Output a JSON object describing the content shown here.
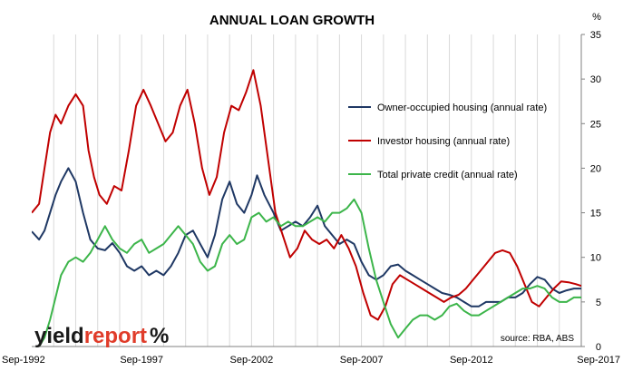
{
  "chart_data": {
    "type": "line",
    "title": "ANNUAL LOAN GROWTH",
    "y_unit": "%",
    "ylim": [
      0,
      35
    ],
    "y_ticks": [
      "0",
      "5",
      "10",
      "15",
      "20",
      "25",
      "30",
      "35"
    ],
    "x_range": [
      "1992-09",
      "2017-09"
    ],
    "x_ticks": [
      {
        "label": "Sep-1992",
        "date": "1992-09"
      },
      {
        "label": "Sep-1997",
        "date": "1997-09"
      },
      {
        "label": "Sep-2002",
        "date": "2002-09"
      },
      {
        "label": "Sep-2007",
        "date": "2007-09"
      },
      {
        "label": "Sep-2012",
        "date": "2012-09"
      },
      {
        "label": "Sep-2017",
        "date": "2017-09"
      }
    ],
    "grid": "vertical lines at year intervals",
    "legend_position": "right, upper middle",
    "series": [
      {
        "name": "Owner-occupied housing (annual rate)",
        "color": "#1f3864",
        "points": [
          [
            "1992-09",
            12.9
          ],
          [
            "1993-01",
            12.0
          ],
          [
            "1993-04",
            13.0
          ],
          [
            "1993-07",
            15.0
          ],
          [
            "1993-10",
            17.0
          ],
          [
            "1994-01",
            18.5
          ],
          [
            "1994-05",
            20.0
          ],
          [
            "1994-09",
            18.5
          ],
          [
            "1995-01",
            15.0
          ],
          [
            "1995-05",
            12.0
          ],
          [
            "1995-09",
            11.0
          ],
          [
            "1996-01",
            10.8
          ],
          [
            "1996-05",
            11.6
          ],
          [
            "1996-09",
            10.5
          ],
          [
            "1997-01",
            9.0
          ],
          [
            "1997-05",
            8.5
          ],
          [
            "1997-09",
            9.0
          ],
          [
            "1998-01",
            8.0
          ],
          [
            "1998-05",
            8.5
          ],
          [
            "1998-09",
            8.0
          ],
          [
            "1999-01",
            9.0
          ],
          [
            "1999-05",
            10.5
          ],
          [
            "1999-09",
            12.5
          ],
          [
            "2000-01",
            13.0
          ],
          [
            "2000-05",
            11.5
          ],
          [
            "2000-09",
            10.0
          ],
          [
            "2001-01",
            12.5
          ],
          [
            "2001-05",
            16.5
          ],
          [
            "2001-09",
            18.5
          ],
          [
            "2002-01",
            16.0
          ],
          [
            "2002-05",
            15.0
          ],
          [
            "2002-09",
            17.0
          ],
          [
            "2002-12",
            19.2
          ],
          [
            "2003-04",
            17.0
          ],
          [
            "2003-09",
            15.0
          ],
          [
            "2004-01",
            13.0
          ],
          [
            "2004-05",
            13.5
          ],
          [
            "2004-09",
            14.0
          ],
          [
            "2005-01",
            13.5
          ],
          [
            "2005-05",
            14.5
          ],
          [
            "2005-09",
            15.8
          ],
          [
            "2006-01",
            13.5
          ],
          [
            "2006-05",
            12.5
          ],
          [
            "2006-09",
            11.5
          ],
          [
            "2007-01",
            12.0
          ],
          [
            "2007-05",
            11.5
          ],
          [
            "2007-09",
            9.5
          ],
          [
            "2008-01",
            8.0
          ],
          [
            "2008-05",
            7.5
          ],
          [
            "2008-09",
            8.0
          ],
          [
            "2009-01",
            9.0
          ],
          [
            "2009-05",
            9.2
          ],
          [
            "2009-09",
            8.5
          ],
          [
            "2010-01",
            8.0
          ],
          [
            "2010-05",
            7.5
          ],
          [
            "2010-09",
            7.0
          ],
          [
            "2011-01",
            6.5
          ],
          [
            "2011-05",
            6.0
          ],
          [
            "2011-09",
            5.8
          ],
          [
            "2012-01",
            5.5
          ],
          [
            "2012-05",
            5.0
          ],
          [
            "2012-09",
            4.5
          ],
          [
            "2013-01",
            4.5
          ],
          [
            "2013-05",
            5.0
          ],
          [
            "2013-09",
            5.0
          ],
          [
            "2014-01",
            5.0
          ],
          [
            "2014-05",
            5.5
          ],
          [
            "2014-09",
            5.5
          ],
          [
            "2015-01",
            6.0
          ],
          [
            "2015-05",
            7.0
          ],
          [
            "2015-09",
            7.8
          ],
          [
            "2016-01",
            7.5
          ],
          [
            "2016-05",
            6.5
          ],
          [
            "2016-09",
            6.0
          ],
          [
            "2017-01",
            6.3
          ],
          [
            "2017-05",
            6.5
          ],
          [
            "2017-09",
            6.5
          ]
        ]
      },
      {
        "name": "Investor housing (annual rate)",
        "color": "#c00000",
        "points": [
          [
            "1992-09",
            15.0
          ],
          [
            "1993-01",
            16.0
          ],
          [
            "1993-04",
            20.0
          ],
          [
            "1993-07",
            24.0
          ],
          [
            "1993-10",
            26.0
          ],
          [
            "1994-01",
            25.0
          ],
          [
            "1994-05",
            27.0
          ],
          [
            "1994-09",
            28.3
          ],
          [
            "1995-01",
            27.0
          ],
          [
            "1995-04",
            22.0
          ],
          [
            "1995-07",
            19.0
          ],
          [
            "1995-10",
            17.0
          ],
          [
            "1996-02",
            16.0
          ],
          [
            "1996-06",
            18.0
          ],
          [
            "1996-10",
            17.5
          ],
          [
            "1997-02",
            22.0
          ],
          [
            "1997-06",
            27.0
          ],
          [
            "1997-10",
            28.8
          ],
          [
            "1998-02",
            27.0
          ],
          [
            "1998-06",
            25.0
          ],
          [
            "1998-10",
            23.0
          ],
          [
            "1999-02",
            24.0
          ],
          [
            "1999-06",
            27.0
          ],
          [
            "1999-10",
            28.8
          ],
          [
            "2000-02",
            25.0
          ],
          [
            "2000-06",
            20.0
          ],
          [
            "2000-10",
            17.0
          ],
          [
            "2001-02",
            19.0
          ],
          [
            "2001-06",
            24.0
          ],
          [
            "2001-10",
            27.0
          ],
          [
            "2002-02",
            26.5
          ],
          [
            "2002-06",
            28.5
          ],
          [
            "2002-10",
            31.0
          ],
          [
            "2003-02",
            27.0
          ],
          [
            "2003-06",
            21.0
          ],
          [
            "2003-10",
            15.0
          ],
          [
            "2004-02",
            12.5
          ],
          [
            "2004-06",
            10.0
          ],
          [
            "2004-10",
            11.0
          ],
          [
            "2005-02",
            13.0
          ],
          [
            "2005-06",
            12.0
          ],
          [
            "2005-10",
            11.5
          ],
          [
            "2006-02",
            12.0
          ],
          [
            "2006-06",
            11.0
          ],
          [
            "2006-10",
            12.5
          ],
          [
            "2007-02",
            11.0
          ],
          [
            "2007-06",
            9.0
          ],
          [
            "2007-10",
            6.0
          ],
          [
            "2008-02",
            3.5
          ],
          [
            "2008-06",
            3.0
          ],
          [
            "2008-10",
            4.5
          ],
          [
            "2009-02",
            7.0
          ],
          [
            "2009-06",
            8.0
          ],
          [
            "2009-10",
            7.5
          ],
          [
            "2010-02",
            7.0
          ],
          [
            "2010-06",
            6.5
          ],
          [
            "2010-10",
            6.0
          ],
          [
            "2011-02",
            5.5
          ],
          [
            "2011-06",
            5.0
          ],
          [
            "2011-10",
            5.5
          ],
          [
            "2012-02",
            5.8
          ],
          [
            "2012-06",
            6.5
          ],
          [
            "2012-10",
            7.5
          ],
          [
            "2013-02",
            8.5
          ],
          [
            "2013-06",
            9.5
          ],
          [
            "2013-10",
            10.5
          ],
          [
            "2014-02",
            10.8
          ],
          [
            "2014-06",
            10.5
          ],
          [
            "2014-10",
            9.0
          ],
          [
            "2015-02",
            7.0
          ],
          [
            "2015-06",
            5.0
          ],
          [
            "2015-10",
            4.5
          ],
          [
            "2016-02",
            5.5
          ],
          [
            "2016-06",
            6.5
          ],
          [
            "2016-10",
            7.3
          ],
          [
            "2017-02",
            7.2
          ],
          [
            "2017-06",
            7.0
          ],
          [
            "2017-09",
            6.8
          ]
        ]
      },
      {
        "name": "Total private credit (annual rate)",
        "color": "#3cb54a",
        "points": [
          [
            "1992-09",
            -0.5
          ],
          [
            "1993-01",
            0.0
          ],
          [
            "1993-04",
            1.0
          ],
          [
            "1993-07",
            3.0
          ],
          [
            "1993-10",
            5.5
          ],
          [
            "1994-01",
            8.0
          ],
          [
            "1994-05",
            9.5
          ],
          [
            "1994-09",
            10.0
          ],
          [
            "1995-01",
            9.5
          ],
          [
            "1995-05",
            10.5
          ],
          [
            "1995-09",
            12.0
          ],
          [
            "1996-01",
            13.5
          ],
          [
            "1996-05",
            12.0
          ],
          [
            "1996-09",
            11.0
          ],
          [
            "1997-01",
            10.5
          ],
          [
            "1997-05",
            11.5
          ],
          [
            "1997-09",
            12.0
          ],
          [
            "1998-01",
            10.5
          ],
          [
            "1998-05",
            11.0
          ],
          [
            "1998-09",
            11.5
          ],
          [
            "1999-01",
            12.5
          ],
          [
            "1999-05",
            13.5
          ],
          [
            "1999-09",
            12.5
          ],
          [
            "2000-01",
            11.5
          ],
          [
            "2000-05",
            9.5
          ],
          [
            "2000-09",
            8.5
          ],
          [
            "2001-01",
            9.0
          ],
          [
            "2001-05",
            11.5
          ],
          [
            "2001-09",
            12.5
          ],
          [
            "2002-01",
            11.5
          ],
          [
            "2002-05",
            12.0
          ],
          [
            "2002-09",
            14.5
          ],
          [
            "2003-01",
            15.0
          ],
          [
            "2003-05",
            14.0
          ],
          [
            "2003-09",
            14.5
          ],
          [
            "2004-01",
            13.5
          ],
          [
            "2004-05",
            14.0
          ],
          [
            "2004-09",
            13.5
          ],
          [
            "2005-01",
            13.5
          ],
          [
            "2005-05",
            14.0
          ],
          [
            "2005-09",
            14.5
          ],
          [
            "2006-01",
            14.0
          ],
          [
            "2006-05",
            15.0
          ],
          [
            "2006-09",
            15.0
          ],
          [
            "2007-01",
            15.5
          ],
          [
            "2007-05",
            16.5
          ],
          [
            "2007-09",
            15.0
          ],
          [
            "2008-01",
            11.0
          ],
          [
            "2008-05",
            7.5
          ],
          [
            "2008-09",
            5.0
          ],
          [
            "2009-01",
            2.5
          ],
          [
            "2009-05",
            1.0
          ],
          [
            "2009-09",
            2.0
          ],
          [
            "2010-01",
            3.0
          ],
          [
            "2010-05",
            3.5
          ],
          [
            "2010-09",
            3.5
          ],
          [
            "2011-01",
            3.0
          ],
          [
            "2011-05",
            3.5
          ],
          [
            "2011-09",
            4.5
          ],
          [
            "2012-01",
            4.8
          ],
          [
            "2012-05",
            4.0
          ],
          [
            "2012-09",
            3.5
          ],
          [
            "2013-01",
            3.5
          ],
          [
            "2013-05",
            4.0
          ],
          [
            "2013-09",
            4.5
          ],
          [
            "2014-01",
            5.0
          ],
          [
            "2014-05",
            5.5
          ],
          [
            "2014-09",
            6.0
          ],
          [
            "2015-01",
            6.5
          ],
          [
            "2015-05",
            6.5
          ],
          [
            "2015-09",
            6.8
          ],
          [
            "2016-01",
            6.5
          ],
          [
            "2016-05",
            5.5
          ],
          [
            "2016-09",
            5.0
          ],
          [
            "2017-01",
            5.0
          ],
          [
            "2017-05",
            5.5
          ],
          [
            "2017-09",
            5.5
          ]
        ]
      }
    ],
    "source_note": "source: RBA, ABS"
  },
  "logo": {
    "text_a": "yield",
    "text_b": "report",
    "symbol": "%"
  }
}
